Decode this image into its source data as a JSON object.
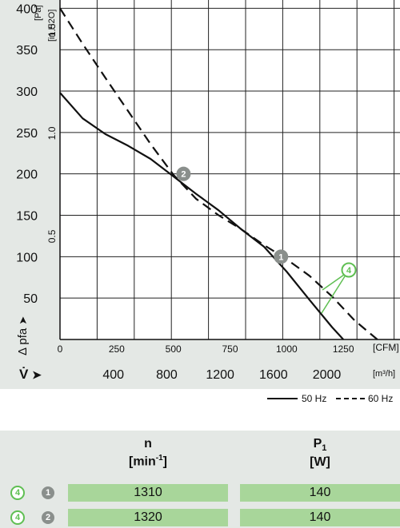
{
  "chart_data": {
    "type": "line",
    "x_axis": {
      "unit": "[CFM]",
      "ticks": [
        "0",
        "250",
        "500",
        "750",
        "1000",
        "1250"
      ],
      "range": [
        0,
        1500
      ]
    },
    "x_axis_secondary": {
      "label": "V̇",
      "unit": "[m³/h]",
      "ticks": [
        "400",
        "800",
        "1200",
        "1600",
        "2000"
      ]
    },
    "y_axis": {
      "label": "Δ pfa",
      "unit": "[Pa]",
      "ticks": [
        "50",
        "100",
        "150",
        "200",
        "250",
        "300",
        "350",
        "400"
      ],
      "range": [
        0,
        410
      ]
    },
    "y_axis_secondary": {
      "unit": "[in H2O]",
      "ticks": [
        "0.5",
        "1.0",
        "1.5"
      ]
    },
    "series": [
      {
        "name": "50 Hz",
        "style": "solid",
        "x": [
          0,
          100,
          200,
          300,
          400,
          500,
          600,
          700,
          800,
          900,
          1000,
          1100,
          1200,
          1250
        ],
        "y": [
          298,
          267,
          248,
          234,
          218,
          197,
          176,
          156,
          133,
          112,
          82,
          48,
          15,
          0
        ]
      },
      {
        "name": "60 Hz",
        "style": "dashed",
        "x": [
          0,
          100,
          200,
          300,
          400,
          500,
          600,
          700,
          800,
          900,
          1000,
          1100,
          1200,
          1300,
          1400
        ],
        "y": [
          400,
          357,
          316,
          276,
          236,
          199,
          170,
          150,
          133,
          114,
          97,
          77,
          52,
          23,
          0
        ]
      }
    ],
    "operating_points": [
      {
        "label": "1",
        "x": 975,
        "y": 100
      },
      {
        "label": "2",
        "x": 545,
        "y": 200
      }
    ],
    "annotation_label": "4",
    "colors": {
      "curve": "#111111",
      "grid": "#222222",
      "marker": "#8a8f8c",
      "accent_green": "#5fbf52",
      "cell_green": "#a8d69a",
      "panel_bg": "#e4e8e5"
    }
  },
  "legend": {
    "solid": "50 Hz",
    "dashed": "60 Hz"
  },
  "table": {
    "col_n": {
      "name": "n",
      "unit_main": "[min",
      "unit_sup": "-1",
      "unit_end": "]"
    },
    "col_p": {
      "name": "P",
      "sub": "1",
      "unit": "[W]"
    },
    "rows": [
      {
        "ref": "4",
        "point": "1",
        "n": "1310",
        "p": "140"
      },
      {
        "ref": "4",
        "point": "2",
        "n": "1320",
        "p": "140"
      }
    ]
  }
}
